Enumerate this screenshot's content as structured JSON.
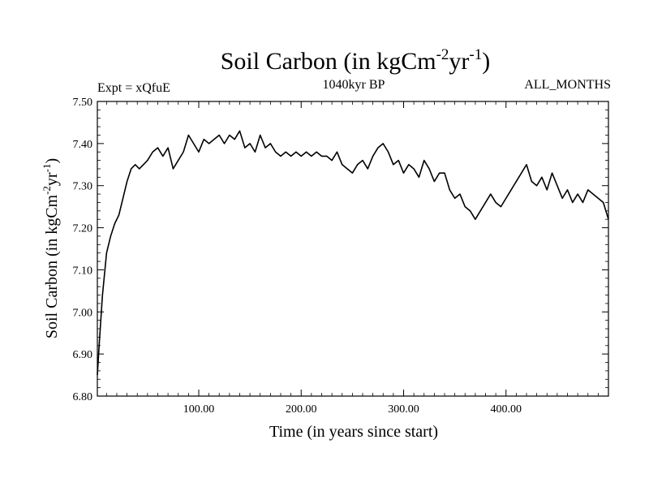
{
  "chart_data": {
    "type": "line",
    "title": {
      "main": "Soil Carbon (in kgCm",
      "sup1": "-2",
      "mid": "yr",
      "sup2": "-1",
      "end": ")"
    },
    "subtitle_left": "Expt = xQfuE",
    "subtitle_center": "1040kyr BP",
    "subtitle_right": "ALL_MONTHS",
    "xlabel": "Time (in years since start)",
    "ylabel": {
      "main": "Soil Carbon (in kgCm",
      "sup1": "-2",
      "mid": "yr",
      "sup2": "-1",
      "end": ")"
    },
    "xlim": [
      1,
      500
    ],
    "ylim": [
      6.8,
      7.5
    ],
    "xticks": [
      100,
      200,
      300,
      400
    ],
    "xtick_labels": [
      "100.00",
      "200.00",
      "300.00",
      "400.00"
    ],
    "yticks": [
      6.8,
      6.9,
      7.0,
      7.1,
      7.2,
      7.3,
      7.4,
      7.5
    ],
    "ytick_labels": [
      "6.80",
      "6.90",
      "7.00",
      "7.10",
      "7.20",
      "7.30",
      "7.40",
      "7.50"
    ],
    "grid": false,
    "series": [
      {
        "name": "Soil Carbon",
        "color": "#000000",
        "x": [
          1,
          3,
          6,
          10,
          14,
          18,
          22,
          26,
          30,
          34,
          38,
          42,
          46,
          50,
          55,
          60,
          65,
          70,
          75,
          80,
          85,
          90,
          95,
          100,
          105,
          110,
          115,
          120,
          125,
          130,
          135,
          140,
          145,
          150,
          155,
          160,
          165,
          170,
          175,
          180,
          185,
          190,
          195,
          200,
          205,
          210,
          215,
          220,
          225,
          230,
          235,
          240,
          245,
          250,
          255,
          260,
          265,
          270,
          275,
          280,
          285,
          290,
          295,
          300,
          305,
          310,
          315,
          320,
          325,
          330,
          335,
          340,
          345,
          350,
          355,
          360,
          365,
          370,
          375,
          380,
          385,
          390,
          395,
          400,
          405,
          410,
          415,
          420,
          425,
          430,
          435,
          440,
          445,
          450,
          455,
          460,
          465,
          470,
          475,
          480,
          485,
          490,
          495,
          500
        ],
        "y": [
          6.85,
          6.93,
          7.04,
          7.14,
          7.18,
          7.21,
          7.23,
          7.27,
          7.31,
          7.34,
          7.35,
          7.34,
          7.35,
          7.36,
          7.38,
          7.39,
          7.37,
          7.39,
          7.34,
          7.36,
          7.38,
          7.42,
          7.4,
          7.38,
          7.41,
          7.4,
          7.41,
          7.42,
          7.4,
          7.42,
          7.41,
          7.43,
          7.39,
          7.4,
          7.38,
          7.42,
          7.39,
          7.4,
          7.38,
          7.37,
          7.38,
          7.37,
          7.38,
          7.37,
          7.38,
          7.37,
          7.38,
          7.37,
          7.37,
          7.36,
          7.38,
          7.35,
          7.34,
          7.33,
          7.35,
          7.36,
          7.34,
          7.37,
          7.39,
          7.4,
          7.38,
          7.35,
          7.36,
          7.33,
          7.35,
          7.34,
          7.32,
          7.36,
          7.34,
          7.31,
          7.33,
          7.33,
          7.29,
          7.27,
          7.28,
          7.25,
          7.24,
          7.22,
          7.24,
          7.26,
          7.28,
          7.26,
          7.25,
          7.27,
          7.29,
          7.31,
          7.33,
          7.35,
          7.31,
          7.3,
          7.32,
          7.29,
          7.33,
          7.3,
          7.27,
          7.29,
          7.26,
          7.28,
          7.26,
          7.29,
          7.28,
          7.27,
          7.26,
          7.22
        ]
      }
    ]
  }
}
